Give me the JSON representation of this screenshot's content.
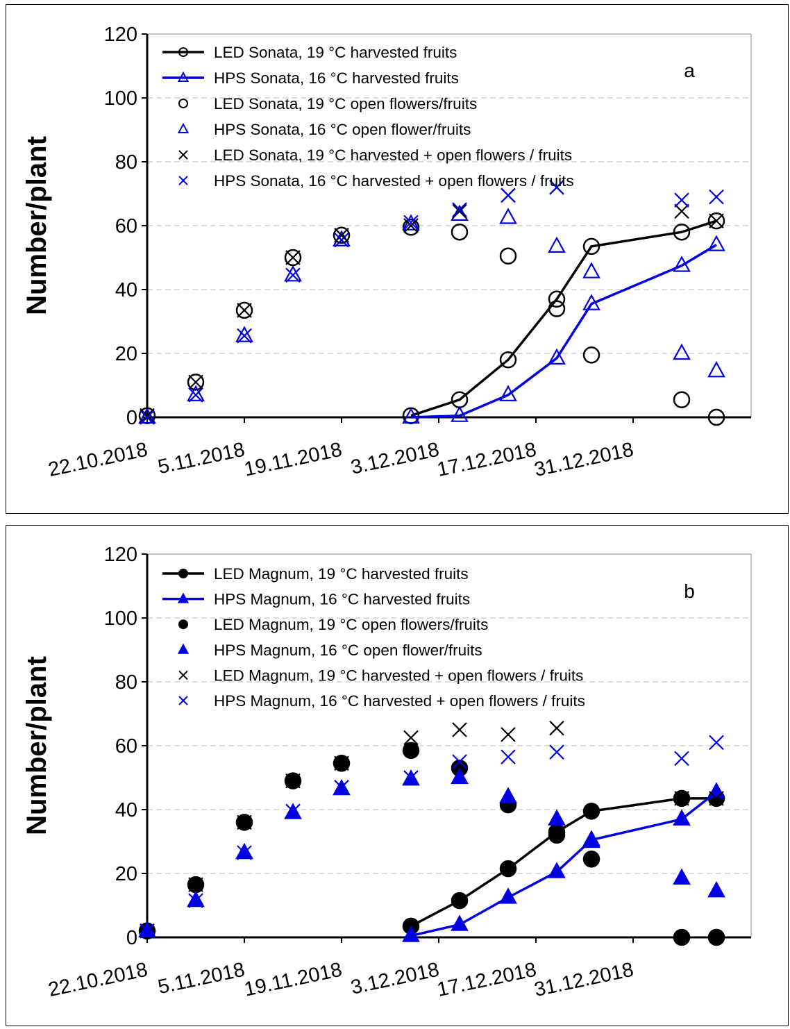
{
  "chart_data": [
    {
      "id": "a",
      "type": "line",
      "panel_label": "a",
      "ylabel": "Number/plant",
      "ylim": [
        0,
        120
      ],
      "yticks": [
        0,
        20,
        40,
        60,
        80,
        100,
        120
      ],
      "x_start": "2018-10-22",
      "x_end": "2019-01-17",
      "xticks": [
        "22.10.2018",
        "5.11.2018",
        "19.11.2018",
        "3.12.2018",
        "17.12.2018",
        "31.12.2018"
      ],
      "xtick_dates": [
        "2018-10-22",
        "2018-11-05",
        "2018-11-19",
        "2018-12-03",
        "2018-12-17",
        "2018-12-31"
      ],
      "grid": "horizontal dashed",
      "legend_position": "top-left",
      "series": [
        {
          "name": "LED Sonata, 19 °C harvested fruits",
          "style": "line-open-circle",
          "color": "#000000",
          "x": [
            "2018-11-29",
            "2018-12-06",
            "2018-12-13",
            "2018-12-20",
            "2018-12-25",
            "2019-01-07",
            "2019-01-12"
          ],
          "y": [
            0.5,
            5.5,
            18,
            37,
            53.5,
            58,
            61.5
          ]
        },
        {
          "name": "HPS Sonata, 16 °C harvested fruits",
          "style": "line-open-triangle",
          "color": "#0000e0",
          "x": [
            "2018-11-29",
            "2018-12-06",
            "2018-12-13",
            "2018-12-20",
            "2018-12-25",
            "2019-01-07",
            "2019-01-12"
          ],
          "y": [
            0,
            0.5,
            7,
            18.5,
            35.5,
            47.5,
            54
          ]
        },
        {
          "name": "LED Sonata, 19 °C open flowers/fruits",
          "style": "open-circle",
          "color": "#000000",
          "x": [
            "2018-10-22",
            "2018-10-29",
            "2018-11-05",
            "2018-11-12",
            "2018-11-19",
            "2018-11-29",
            "2018-12-06",
            "2018-12-13",
            "2018-12-20",
            "2018-12-25",
            "2019-01-07",
            "2019-01-12"
          ],
          "y": [
            0.5,
            11,
            33.5,
            50,
            57,
            59.5,
            58,
            50.5,
            34,
            19.5,
            5.5,
            0
          ]
        },
        {
          "name": "HPS Sonata, 16 °C open flower/fruits",
          "style": "open-triangle",
          "color": "#0000e0",
          "x": [
            "2018-10-22",
            "2018-10-29",
            "2018-11-05",
            "2018-11-12",
            "2018-11-19",
            "2018-11-29",
            "2018-12-06",
            "2018-12-13",
            "2018-12-20",
            "2018-12-25",
            "2019-01-07",
            "2019-01-12"
          ],
          "y": [
            0,
            7,
            25.5,
            44.5,
            55.5,
            60.5,
            63.5,
            62.5,
            53.5,
            45.5,
            20,
            14.5
          ]
        },
        {
          "name": "LED Sonata, 19 °C harvested + open flowers / fruits",
          "style": "x",
          "color": "#000000",
          "x": [
            "2018-10-22",
            "2018-10-29",
            "2018-11-05",
            "2018-11-12",
            "2018-11-19",
            "2018-11-29",
            "2018-12-06",
            "2018-12-13",
            "2018-12-20",
            "2019-01-07",
            "2019-01-12"
          ],
          "y": [
            0.5,
            11,
            33.5,
            50,
            57,
            60,
            64.5,
            69.5,
            72,
            64.5,
            61.5
          ]
        },
        {
          "name": "HPS Sonata, 16 °C harvested + open flowers / fruits",
          "style": "x",
          "color": "#0000e0",
          "x": [
            "2018-10-22",
            "2018-10-29",
            "2018-11-05",
            "2018-11-12",
            "2018-11-19",
            "2018-11-29",
            "2018-12-06",
            "2018-12-13",
            "2018-12-20",
            "2019-01-07",
            "2019-01-12"
          ],
          "y": [
            0,
            7,
            25.5,
            44.5,
            55.5,
            61,
            65,
            69.5,
            72,
            68,
            69
          ]
        }
      ]
    },
    {
      "id": "b",
      "type": "line",
      "panel_label": "b",
      "ylabel": "Number/plant",
      "ylim": [
        0,
        120
      ],
      "yticks": [
        0,
        20,
        40,
        60,
        80,
        100,
        120
      ],
      "x_start": "2018-10-22",
      "x_end": "2019-01-17",
      "xticks": [
        "22.10.2018",
        "5.11.2018",
        "19.11.2018",
        "3.12.2018",
        "17.12.2018",
        "31.12.2018"
      ],
      "xtick_dates": [
        "2018-10-22",
        "2018-11-05",
        "2018-11-19",
        "2018-12-03",
        "2018-12-17",
        "2018-12-31"
      ],
      "grid": "horizontal dashed",
      "legend_position": "top-left",
      "series": [
        {
          "name": "LED Magnum, 19 °C harvested fruits",
          "style": "line-filled-circle",
          "color": "#000000",
          "x": [
            "2018-11-29",
            "2018-12-06",
            "2018-12-13",
            "2018-12-20",
            "2018-12-25",
            "2019-01-07",
            "2019-01-12"
          ],
          "y": [
            3.5,
            11.5,
            21.5,
            33,
            39.5,
            43.5,
            43.5
          ]
        },
        {
          "name": "HPS Magnum, 16 °C harvested fruits",
          "style": "line-filled-triangle",
          "color": "#0000e0",
          "x": [
            "2018-11-29",
            "2018-12-06",
            "2018-12-13",
            "2018-12-20",
            "2018-12-25",
            "2019-01-07",
            "2019-01-12"
          ],
          "y": [
            0.5,
            4,
            12.5,
            20.5,
            30.5,
            37,
            45.5
          ]
        },
        {
          "name": "LED Magnum, 19 °C open flowers/fruits",
          "style": "filled-circle",
          "color": "#000000",
          "x": [
            "2018-10-22",
            "2018-10-29",
            "2018-11-05",
            "2018-11-12",
            "2018-11-19",
            "2018-11-29",
            "2018-12-06",
            "2018-12-13",
            "2018-12-20",
            "2018-12-25",
            "2019-01-07",
            "2019-01-12"
          ],
          "y": [
            2,
            16.5,
            36,
            49,
            54.5,
            58.5,
            53,
            41.5,
            32,
            24.5,
            0,
            0
          ]
        },
        {
          "name": "HPS Magnum, 16 °C open flower/fruits",
          "style": "filled-triangle",
          "color": "#0000e0",
          "x": [
            "2018-10-22",
            "2018-10-29",
            "2018-11-05",
            "2018-11-12",
            "2018-11-19",
            "2018-11-29",
            "2018-12-06",
            "2018-12-13",
            "2018-12-20",
            "2018-12-25",
            "2019-01-07",
            "2019-01-12"
          ],
          "y": [
            2,
            11.5,
            26.5,
            39,
            46.5,
            49.5,
            50,
            44,
            37,
            30,
            18.5,
            14.5
          ]
        },
        {
          "name": "LED Magnum, 19 °C harvested + open flowers / fruits",
          "style": "x",
          "color": "#000000",
          "x": [
            "2018-10-22",
            "2018-10-29",
            "2018-11-05",
            "2018-11-12",
            "2018-11-19",
            "2018-11-29",
            "2018-12-06",
            "2018-12-13",
            "2018-12-20",
            "2019-01-07",
            "2019-01-12"
          ],
          "y": [
            2,
            16.5,
            36,
            49,
            54.5,
            62.5,
            65,
            63.5,
            65.5,
            43.5,
            43.5
          ]
        },
        {
          "name": "HPS Magnum, 16 °C harvested + open flowers / fruits",
          "style": "x",
          "color": "#0000e0",
          "x": [
            "2018-10-22",
            "2018-10-29",
            "2018-11-05",
            "2018-11-12",
            "2018-11-19",
            "2018-11-29",
            "2018-12-06",
            "2018-12-13",
            "2018-12-20",
            "2019-01-07",
            "2019-01-12"
          ],
          "y": [
            2,
            11.5,
            26.5,
            39.5,
            47,
            50,
            55,
            56.5,
            58,
            56,
            61
          ]
        }
      ]
    }
  ]
}
